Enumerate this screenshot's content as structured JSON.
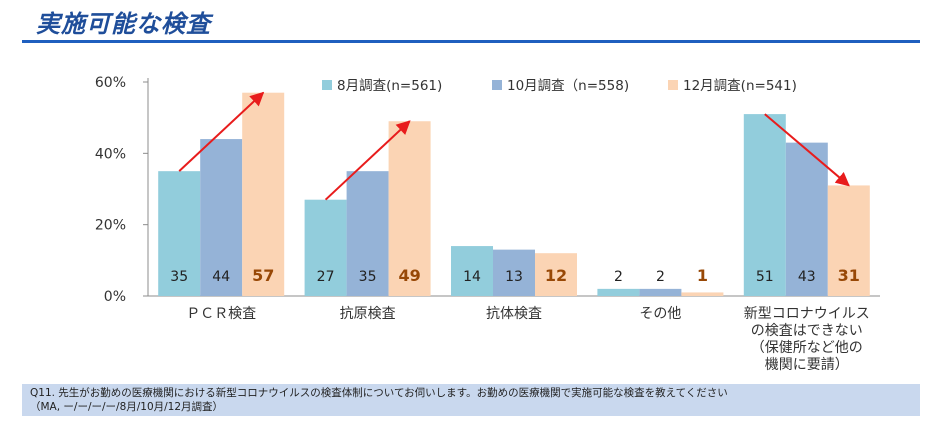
{
  "page": {
    "title": "実施可能な検査"
  },
  "footnote": {
    "line1": "Q11. 先生がお勤めの医療機関における新型コロナウイルスの検査体制についてお伺いします。お勤めの医療機関で実施可能な検査を教えてください",
    "line2": "（MA, ー/ー/ー/ー/8月/10月/12月調査）"
  },
  "chart_data": {
    "type": "bar",
    "title": "",
    "xlabel": "",
    "ylabel": "",
    "ylim": [
      0,
      60
    ],
    "yticks": [
      0,
      20,
      40,
      60
    ],
    "ytick_labels": [
      "0%",
      "20%",
      "40%",
      "60%"
    ],
    "categories": [
      [
        "ＰＣＲ検査"
      ],
      [
        "抗原検査"
      ],
      [
        "抗体検査"
      ],
      [
        "その他"
      ],
      [
        "新型コロナウイルス",
        "の検査はできない",
        "（保健所など他の",
        "機関に要請）"
      ]
    ],
    "series": [
      {
        "name": "8月調査(n=561)",
        "color": "#92cddc",
        "values": [
          35,
          27,
          14,
          2,
          51
        ]
      },
      {
        "name": "10月調査（n=558)",
        "color": "#95b3d7",
        "values": [
          44,
          35,
          13,
          2,
          43
        ]
      },
      {
        "name": "12月調査(n=541)",
        "color": "#fbd4b4",
        "values": [
          57,
          49,
          12,
          1,
          31
        ]
      }
    ],
    "label_colors": [
      "#222222",
      "#222222",
      "#984806"
    ],
    "arrow_color": "#e81c1c",
    "arrows": [
      {
        "category": 0,
        "from_series": 0,
        "to_series": 2
      },
      {
        "category": 1,
        "from_series": 0,
        "to_series": 2
      },
      {
        "category": 4,
        "from_series": 0,
        "to_series": 2
      }
    ],
    "legend_position": "top",
    "grid": false
  }
}
